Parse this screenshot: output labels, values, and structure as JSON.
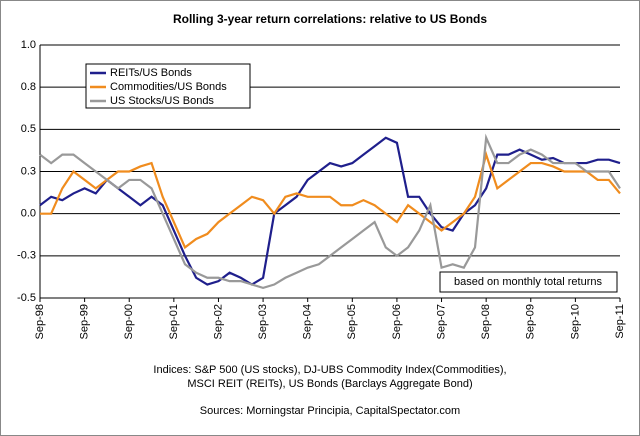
{
  "chart_data": {
    "type": "line",
    "title": "Rolling 3-year return correlations: relative to US Bonds",
    "annotation": "based on monthly total returns",
    "notes": [
      "Indices: S&P 500 (US stocks), DJ-UBS Commodity Index(Commodities),",
      "MSCI REIT (REITs), US Bonds (Barclays Aggregate Bond)"
    ],
    "source": "Sources: Morningstar Principia, CapitalSpectator.com",
    "x": [
      1998.67,
      1998.92,
      1999.17,
      1999.42,
      1999.67,
      1999.92,
      2000.17,
      2000.42,
      2000.67,
      2000.92,
      2001.17,
      2001.42,
      2001.67,
      2001.92,
      2002.17,
      2002.42,
      2002.67,
      2002.92,
      2003.17,
      2003.42,
      2003.67,
      2003.92,
      2004.17,
      2004.42,
      2004.67,
      2004.92,
      2005.17,
      2005.42,
      2005.67,
      2005.92,
      2006.17,
      2006.42,
      2006.67,
      2006.92,
      2007.17,
      2007.42,
      2007.67,
      2007.92,
      2008.17,
      2008.42,
      2008.67,
      2008.92,
      2009.17,
      2009.42,
      2009.67,
      2009.92,
      2010.17,
      2010.42,
      2010.67,
      2010.92,
      2011.17,
      2011.42,
      2011.67
    ],
    "series": [
      {
        "name": "REITs/US Bonds",
        "color": "#1f1f8c",
        "values": [
          0.05,
          0.1,
          0.08,
          0.12,
          0.15,
          0.12,
          0.2,
          0.15,
          0.1,
          0.05,
          0.1,
          0.05,
          -0.1,
          -0.25,
          -0.38,
          -0.42,
          -0.4,
          -0.35,
          -0.38,
          -0.42,
          -0.38,
          0.0,
          0.05,
          0.1,
          0.2,
          0.25,
          0.3,
          0.28,
          0.3,
          0.35,
          0.4,
          0.45,
          0.42,
          0.1,
          0.1,
          0.0,
          -0.08,
          -0.1,
          0.0,
          0.05,
          0.15,
          0.35,
          0.35,
          0.38,
          0.35,
          0.32,
          0.33,
          0.3,
          0.3,
          0.3,
          0.32,
          0.32,
          0.3
        ]
      },
      {
        "name": "Commodities/US Bonds",
        "color": "#f08c1e",
        "values": [
          0.0,
          0.0,
          0.15,
          0.25,
          0.2,
          0.15,
          0.2,
          0.25,
          0.25,
          0.28,
          0.3,
          0.1,
          -0.05,
          -0.2,
          -0.15,
          -0.12,
          -0.05,
          0.0,
          0.05,
          0.1,
          0.08,
          0.0,
          0.1,
          0.12,
          0.1,
          0.1,
          0.1,
          0.05,
          0.05,
          0.08,
          0.05,
          0.0,
          -0.05,
          0.05,
          0.0,
          -0.05,
          -0.1,
          -0.05,
          0.0,
          0.1,
          0.35,
          0.15,
          0.2,
          0.25,
          0.3,
          0.3,
          0.28,
          0.25,
          0.25,
          0.25,
          0.2,
          0.2,
          0.12
        ]
      },
      {
        "name": "US Stocks/US Bonds",
        "color": "#999999",
        "values": [
          0.35,
          0.3,
          0.35,
          0.35,
          0.3,
          0.25,
          0.2,
          0.15,
          0.2,
          0.2,
          0.15,
          0.0,
          -0.15,
          -0.3,
          -0.35,
          -0.38,
          -0.38,
          -0.4,
          -0.4,
          -0.42,
          -0.44,
          -0.42,
          -0.38,
          -0.35,
          -0.32,
          -0.3,
          -0.25,
          -0.2,
          -0.15,
          -0.1,
          -0.05,
          -0.2,
          -0.25,
          -0.2,
          -0.1,
          0.05,
          -0.32,
          -0.3,
          -0.32,
          -0.2,
          0.45,
          0.3,
          0.3,
          0.35,
          0.38,
          0.35,
          0.3,
          0.3,
          0.3,
          0.25,
          0.25,
          0.25,
          0.15
        ]
      }
    ],
    "xlim": [
      1998.67,
      2011.67
    ],
    "xticks": [
      {
        "value": 1998.67,
        "label": "Sep-98"
      },
      {
        "value": 1999.67,
        "label": "Sep-99"
      },
      {
        "value": 2000.67,
        "label": "Sep-00"
      },
      {
        "value": 2001.67,
        "label": "Sep-01"
      },
      {
        "value": 2002.67,
        "label": "Sep-02"
      },
      {
        "value": 2003.67,
        "label": "Sep-03"
      },
      {
        "value": 2004.67,
        "label": "Sep-04"
      },
      {
        "value": 2005.67,
        "label": "Sep-05"
      },
      {
        "value": 2006.67,
        "label": "Sep-06"
      },
      {
        "value": 2007.67,
        "label": "Sep-07"
      },
      {
        "value": 2008.67,
        "label": "Sep-08"
      },
      {
        "value": 2009.67,
        "label": "Sep-09"
      },
      {
        "value": 2010.67,
        "label": "Sep-10"
      },
      {
        "value": 2011.67,
        "label": "Sep-11"
      }
    ],
    "ylim": [
      -0.5,
      1.0
    ],
    "yticks": [
      {
        "value": 1.0,
        "label": "1.0"
      },
      {
        "value": 0.75,
        "label": "0.8"
      },
      {
        "value": 0.5,
        "label": "0.5"
      },
      {
        "value": 0.25,
        "label": "0.3"
      },
      {
        "value": 0,
        "label": "0.0"
      },
      {
        "value": -0.25,
        "label": "-0.3"
      },
      {
        "value": -0.5,
        "label": "-0.5"
      }
    ],
    "grid": true,
    "legend": "upper left"
  }
}
